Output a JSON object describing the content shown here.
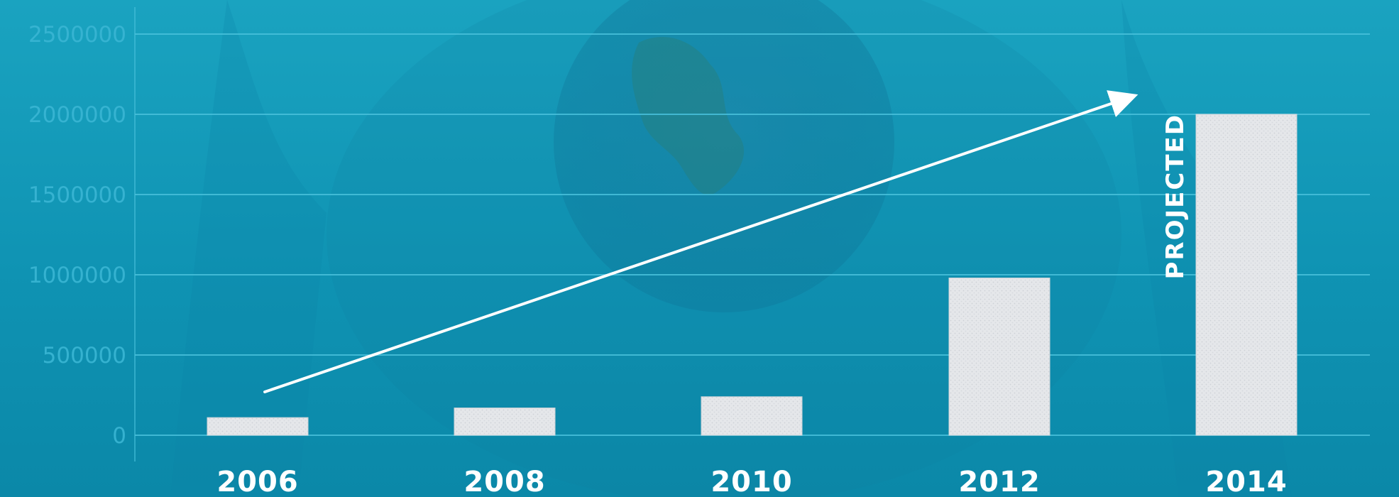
{
  "chart_data": {
    "type": "bar",
    "categories": [
      "2006",
      "2008",
      "2010",
      "2012",
      "2014"
    ],
    "values": [
      110000,
      170000,
      240000,
      980000,
      2000000
    ],
    "yticks": [
      "0",
      "500000",
      "1000000",
      "1500000",
      "2000000",
      "2500000"
    ],
    "ylim": [
      0,
      2500000
    ],
    "annotation": "PROJECTED",
    "annotation_category": "2014",
    "trend_arrow": true,
    "grid": true,
    "title": "",
    "xlabel": "",
    "ylabel": ""
  },
  "colors": {
    "background": "#1aa3c0",
    "gridline": "#49c1dc",
    "tick_label": "#3ab6d4",
    "bar": "#e4e6ea",
    "text": "#ffffff"
  }
}
